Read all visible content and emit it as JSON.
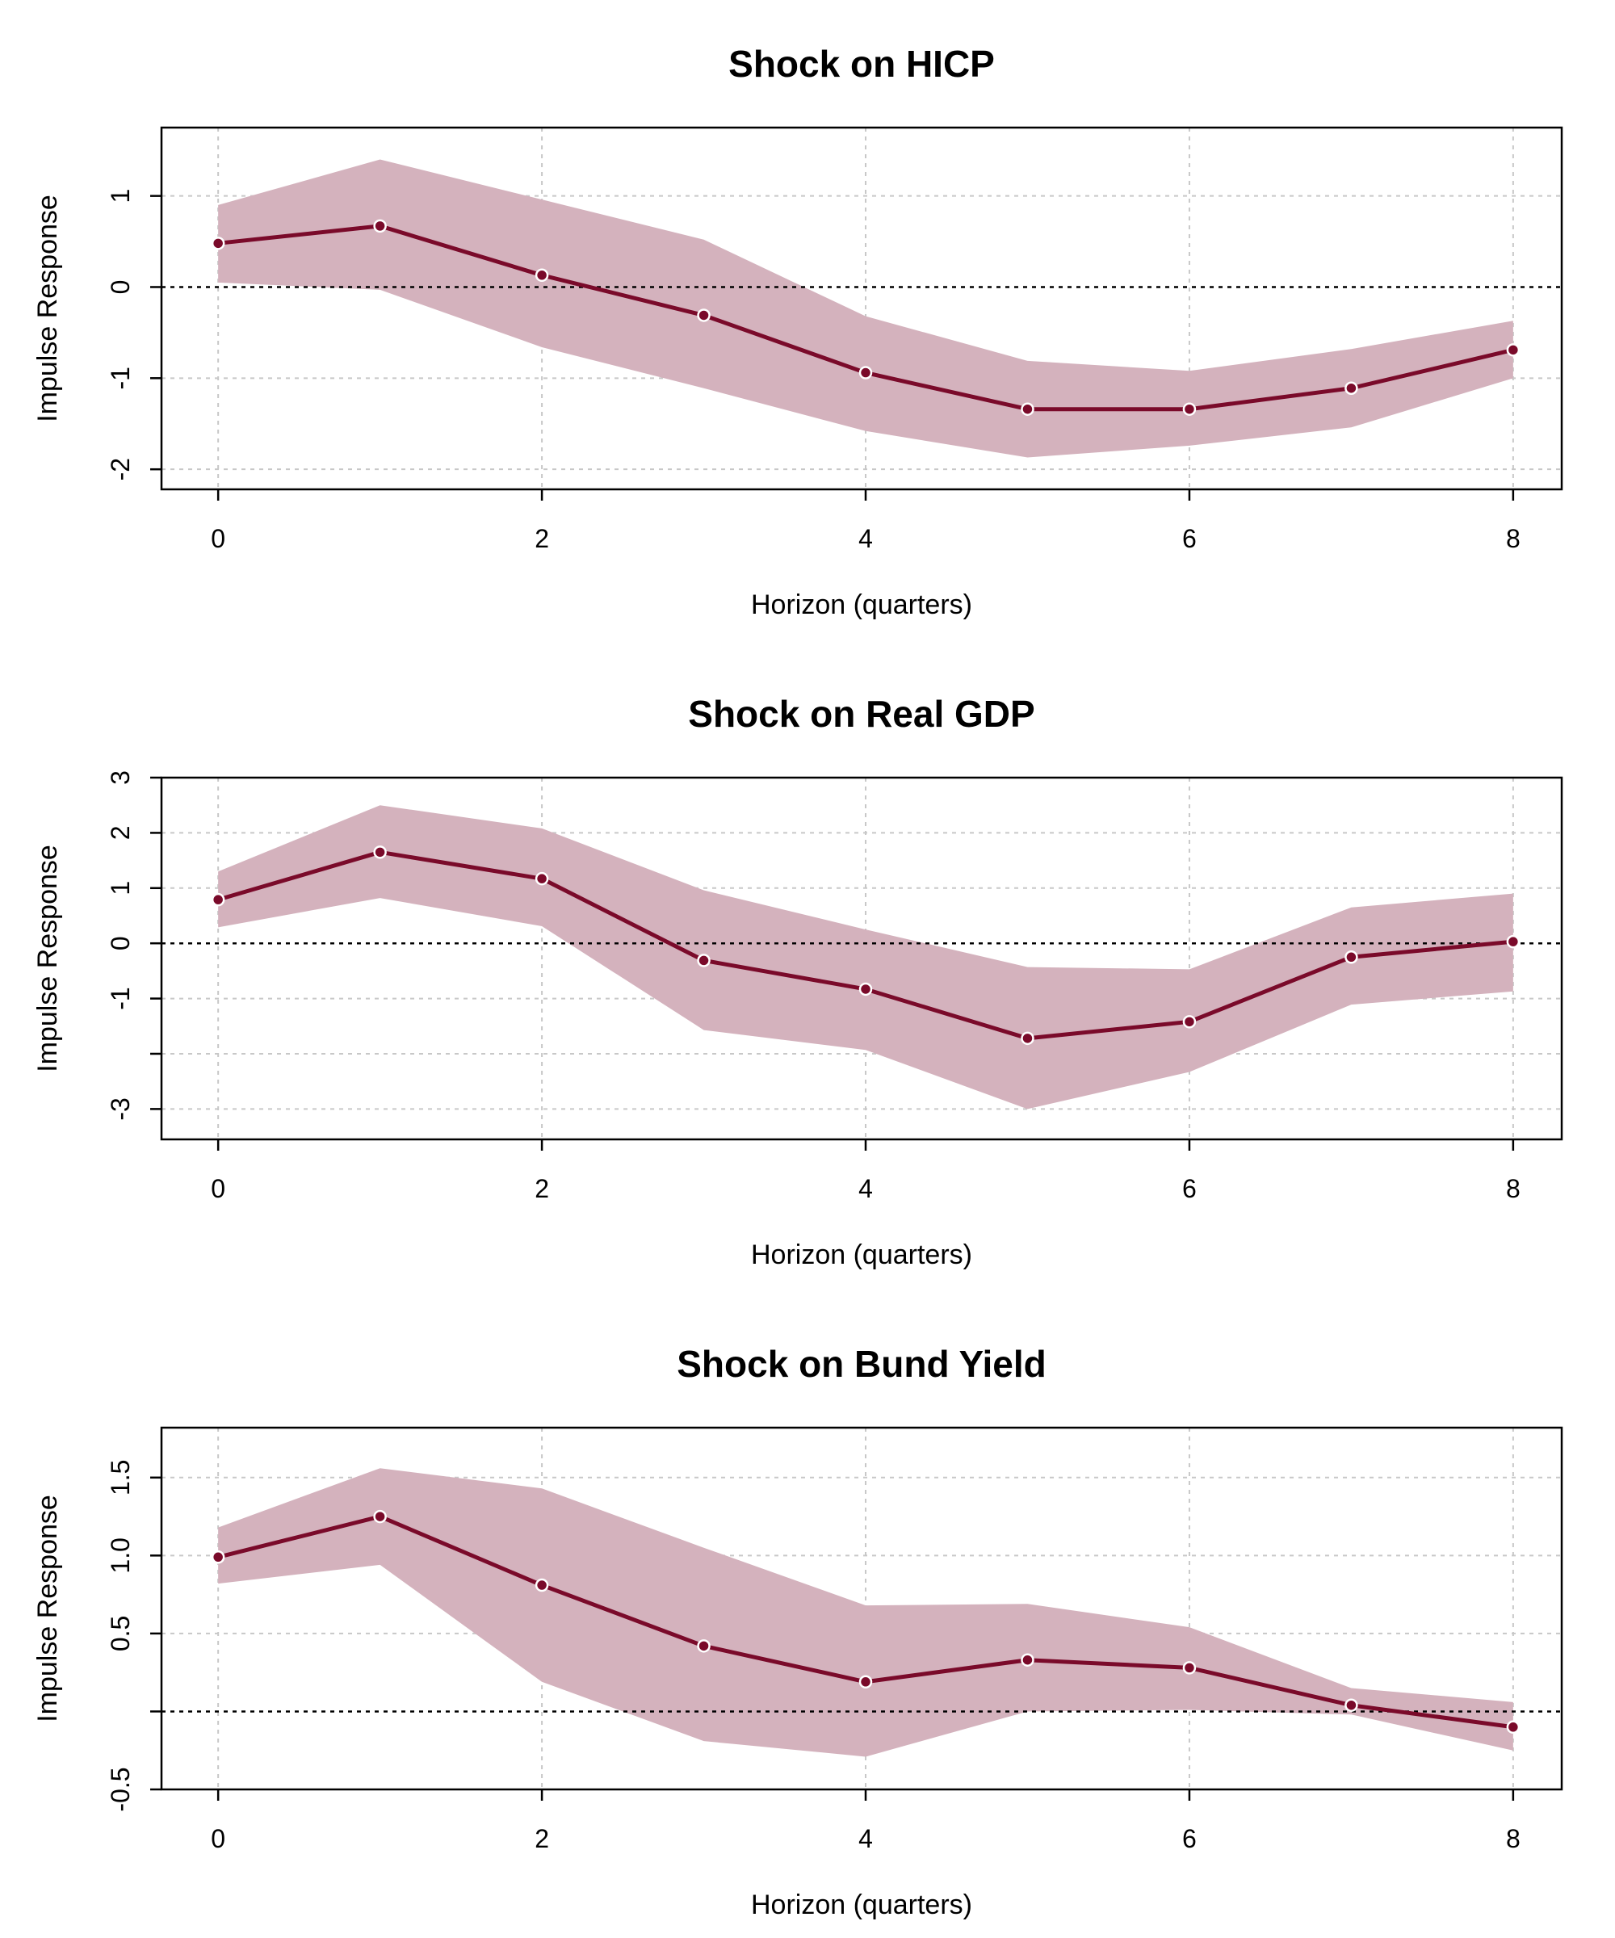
{
  "chart_data": [
    {
      "type": "line",
      "title": "Shock on HICP",
      "xlabel": "Horizon (quarters)",
      "ylabel": "Impulse Response",
      "x": [
        0,
        1,
        2,
        3,
        4,
        5,
        6,
        7,
        8
      ],
      "x_ticks": [
        0,
        2,
        4,
        6,
        8
      ],
      "x_tick_labels": [
        "0",
        "2",
        "4",
        "6",
        "8"
      ],
      "y_ticks": [
        1,
        0,
        -1,
        -2
      ],
      "y_tick_labels": [
        "1",
        "0",
        "-1",
        "-2"
      ],
      "xlim": [
        -0.35,
        8.3
      ],
      "ylim": [
        -2.22,
        1.75
      ],
      "grid": true,
      "zero_line": true,
      "series": [
        {
          "values": [
            0.48,
            0.67,
            0.13,
            -0.31,
            -0.94,
            -1.34,
            -1.34,
            -1.11,
            -0.69
          ]
        }
      ],
      "band": {
        "upper": [
          0.9,
          1.4,
          0.96,
          0.52,
          -0.32,
          -0.81,
          -0.92,
          -0.68,
          -0.37
        ],
        "lower": [
          0.05,
          -0.03,
          -0.66,
          -1.11,
          -1.58,
          -1.87,
          -1.74,
          -1.54,
          -1.0
        ]
      },
      "colors": {
        "line": "#7a0a2a",
        "band": "#d4b2bd"
      }
    },
    {
      "type": "line",
      "title": "Shock on Real GDP",
      "xlabel": "Horizon (quarters)",
      "ylabel": "Impulse Response",
      "x": [
        0,
        1,
        2,
        3,
        4,
        5,
        6,
        7,
        8
      ],
      "x_ticks": [
        0,
        2,
        4,
        6,
        8
      ],
      "x_tick_labels": [
        "0",
        "2",
        "4",
        "6",
        "8"
      ],
      "y_ticks": [
        3,
        2,
        1,
        0,
        -1,
        -2,
        -3
      ],
      "y_tick_labels": [
        "3",
        "2",
        "1",
        "0",
        "-1",
        "",
        "-3"
      ],
      "xlim": [
        -0.35,
        8.3
      ],
      "ylim": [
        -3.55,
        3.0
      ],
      "grid": true,
      "zero_line": true,
      "series": [
        {
          "values": [
            0.79,
            1.65,
            1.17,
            -0.31,
            -0.83,
            -1.72,
            -1.42,
            -0.25,
            0.03
          ]
        }
      ],
      "band": {
        "upper": [
          1.3,
          2.5,
          2.08,
          0.96,
          0.25,
          -0.43,
          -0.47,
          0.65,
          0.9
        ],
        "lower": [
          0.29,
          0.82,
          0.31,
          -1.57,
          -1.93,
          -3.0,
          -2.33,
          -1.11,
          -0.87
        ]
      },
      "colors": {
        "line": "#7a0a2a",
        "band": "#d4b2bd"
      }
    },
    {
      "type": "line",
      "title": "Shock on Bund Yield",
      "xlabel": "Horizon (quarters)",
      "ylabel": "Impulse Response",
      "x": [
        0,
        1,
        2,
        3,
        4,
        5,
        6,
        7,
        8
      ],
      "x_ticks": [
        0,
        2,
        4,
        6,
        8
      ],
      "x_tick_labels": [
        "0",
        "2",
        "4",
        "6",
        "8"
      ],
      "y_ticks": [
        1.5,
        1.0,
        0.5,
        0,
        -0.5
      ],
      "y_tick_labels": [
        "1.5",
        "1.0",
        "0.5",
        "",
        "-0.5"
      ],
      "xlim": [
        -0.35,
        8.3
      ],
      "ylim": [
        -0.5,
        1.82
      ],
      "grid": true,
      "zero_line": true,
      "series": [
        {
          "values": [
            0.99,
            1.25,
            0.81,
            0.42,
            0.19,
            0.33,
            0.28,
            0.04,
            -0.1
          ]
        }
      ],
      "band": {
        "upper": [
          1.18,
          1.56,
          1.43,
          1.05,
          0.68,
          0.69,
          0.54,
          0.15,
          0.06
        ],
        "lower": [
          0.82,
          0.94,
          0.19,
          -0.19,
          -0.29,
          0.0,
          0.01,
          -0.02,
          -0.25
        ]
      },
      "colors": {
        "line": "#7a0a2a",
        "band": "#d4b2bd"
      }
    }
  ]
}
